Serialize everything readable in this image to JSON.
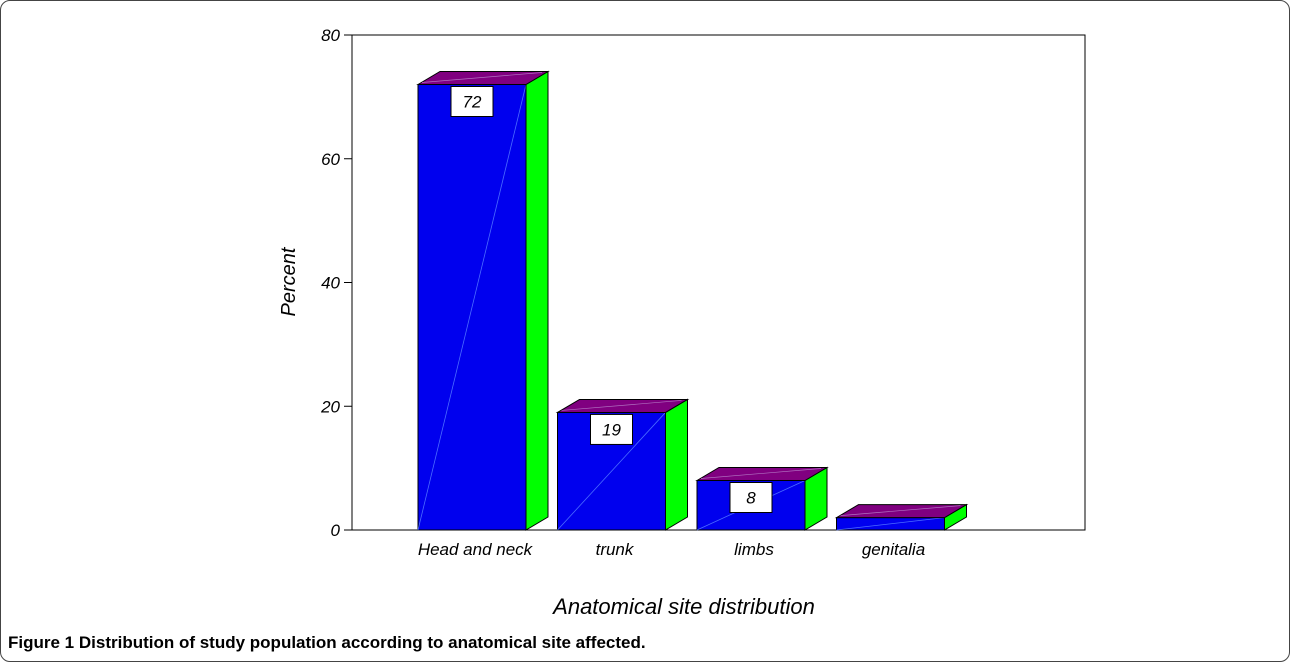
{
  "chart_data": {
    "type": "bar",
    "categories": [
      "Head and neck",
      "trunk",
      "limbs",
      "genitalia"
    ],
    "values": [
      72,
      19,
      8,
      2
    ],
    "data_labels": [
      "72",
      "19",
      "8",
      ""
    ],
    "xlabel": "Anatomical site distribution",
    "ylabel": "Percent",
    "ylim": [
      0,
      80
    ],
    "yticks": [
      "0",
      "20",
      "40",
      "60",
      "80"
    ],
    "grid": false,
    "legend": "none",
    "colors": {
      "front": "#0000ee",
      "side": "#00ff00",
      "top": "#800080"
    }
  },
  "caption": {
    "label": "Figure 1",
    "text": "Distribution of study population according to anatomical site affected."
  }
}
